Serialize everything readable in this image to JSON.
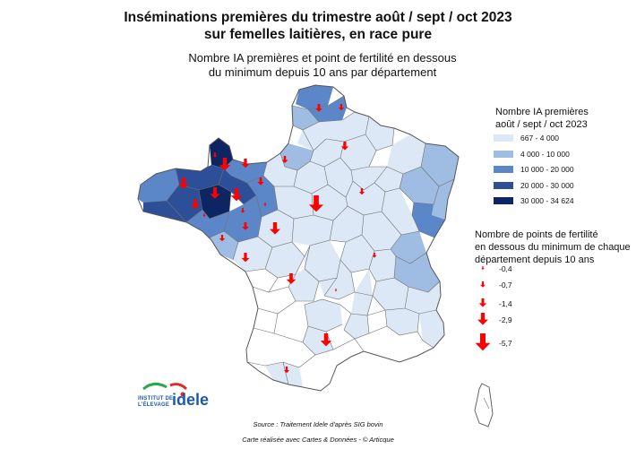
{
  "header": {
    "title_line1": "Inséminations premières du trimestre août / sept / oct 2023",
    "title_line2": "sur femelles laitières, en race pure",
    "subtitle_line1": "Nombre IA premières et point de fertilité en dessous",
    "subtitle_line2": "du minimum depuis 10 ans par département"
  },
  "legend_ia": {
    "title_line1": "Nombre IA premières",
    "title_line2": "août / sept / oct 2023",
    "classes": [
      {
        "label": "667 - 4 000",
        "color": "#dce8f5"
      },
      {
        "label": "4 000 - 10 000",
        "color": "#9fbde3"
      },
      {
        "label": "10 000 - 20 000",
        "color": "#5b87c8"
      },
      {
        "label": "20 000 - 30 000",
        "color": "#2c4f97"
      },
      {
        "label": "30 000 - 34 624",
        "color": "#0d2563"
      }
    ]
  },
  "legend_fert": {
    "title_line1": "Nombre de points de fertilité",
    "title_line2": "en dessous du minimum de chaque",
    "title_line3": "département depuis 10 ans",
    "steps": [
      {
        "label": "-0,4"
      },
      {
        "label": "-0,7"
      },
      {
        "label": "-1,4"
      },
      {
        "label": "-2,9"
      },
      {
        "label": "-5,7"
      }
    ],
    "arrow_color": "#ff0000"
  },
  "footer": {
    "source": "Source : Traitement Idele d'après SIG bovin",
    "credits": "Carte réalisée avec Cartes & Données - © Articque"
  },
  "logo": {
    "small_line1": "INSTITUT DE",
    "small_line2": "L'ÉLEVAGE",
    "brand": "idele"
  }
}
